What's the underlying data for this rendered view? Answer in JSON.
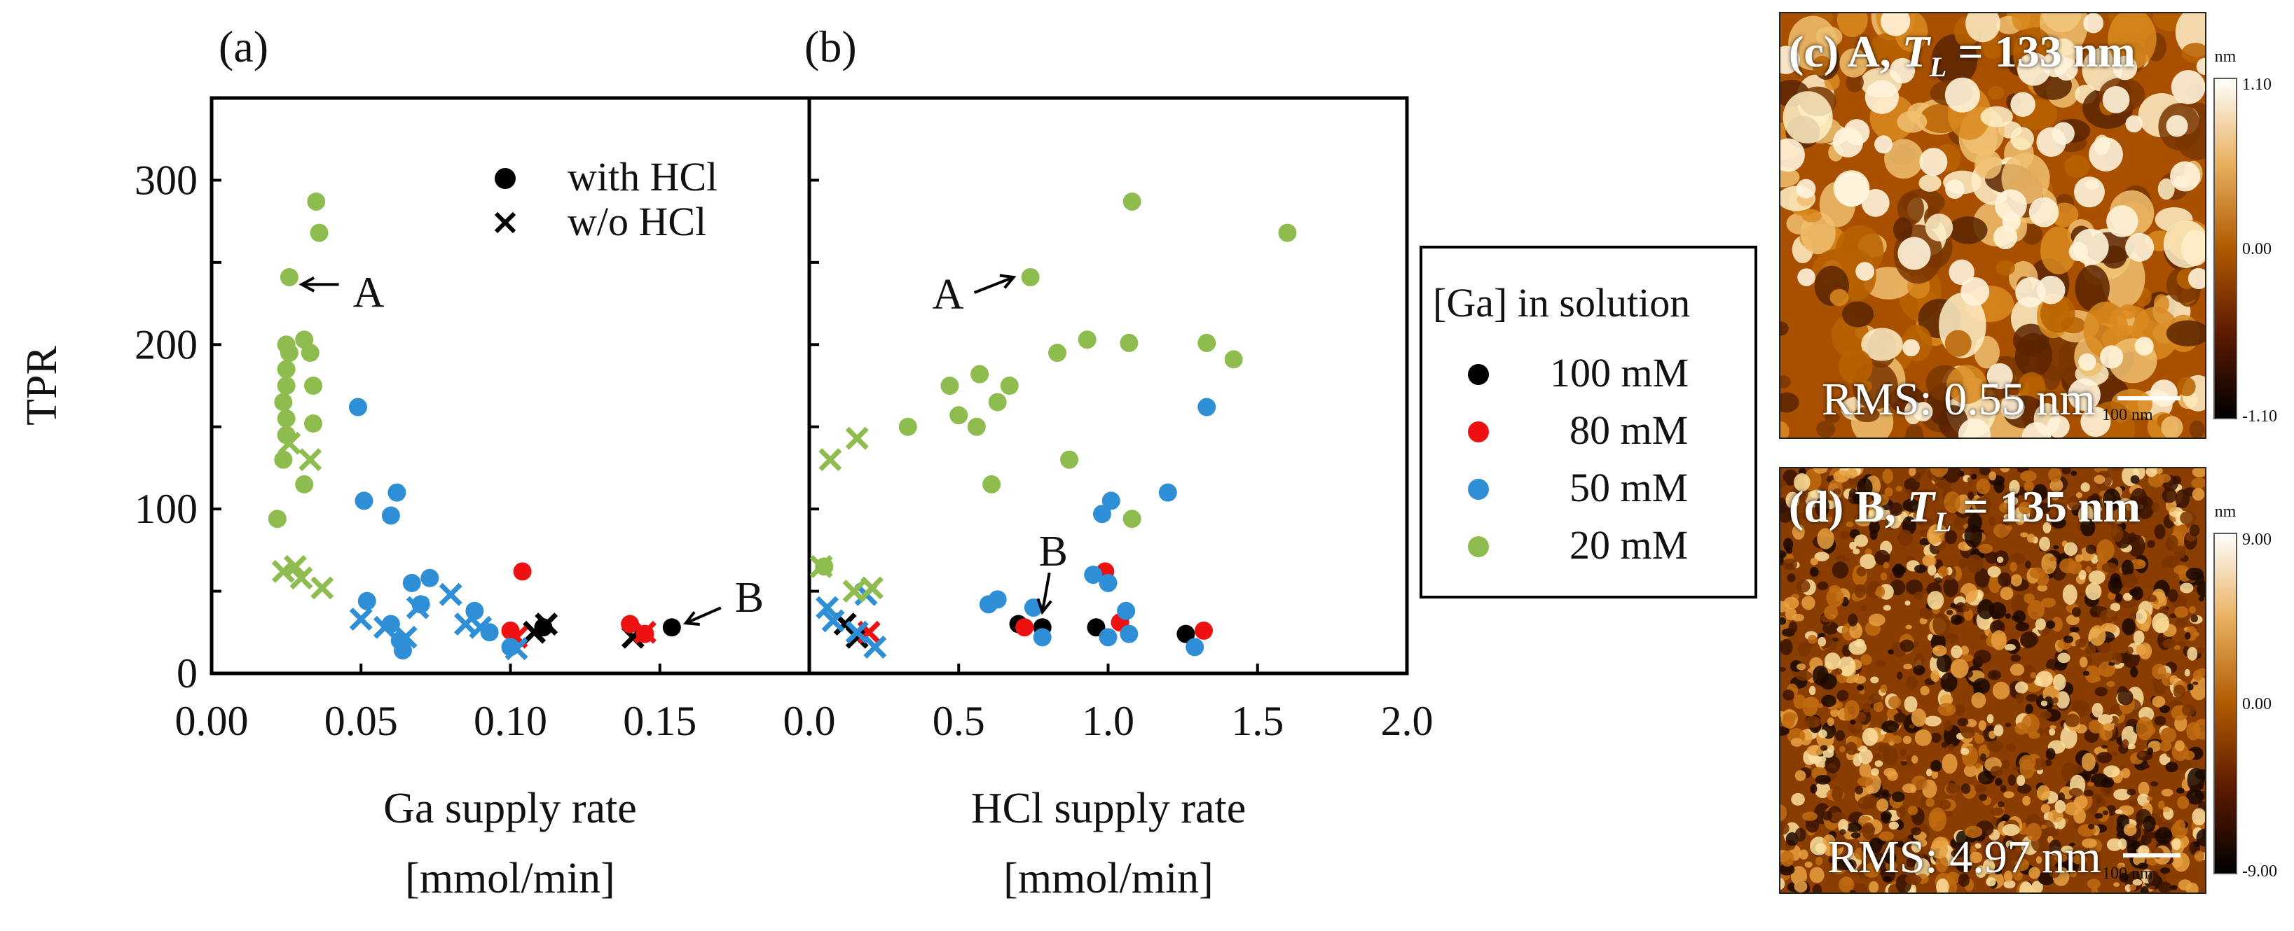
{
  "chart_data": [
    {
      "type": "scatter",
      "panel_label": "(a)",
      "xlabel_line1": "Ga supply rate",
      "xlabel_line2": "[mmol/min]",
      "ylabel": "TPR",
      "xlim": [
        0.0,
        0.2
      ],
      "ylim": [
        0,
        350
      ],
      "xticks": [
        0.0,
        0.05,
        0.1,
        0.15
      ],
      "xtick_labels": [
        "0.00",
        "0.05",
        "0.10",
        "0.15"
      ],
      "yticks": [
        0,
        100,
        200,
        300
      ],
      "ytick_labels": [
        "0",
        "100",
        "200",
        "300"
      ],
      "marker_legend": [
        {
          "marker": "circle",
          "label": "with HCl"
        },
        {
          "marker": "cross",
          "label": "w/o HCl"
        }
      ],
      "annotations": [
        {
          "text": "A",
          "point": [
            0.025,
            240
          ]
        },
        {
          "text": "B",
          "point": [
            0.154,
            28
          ]
        }
      ],
      "series": [
        {
          "name": "100 mM",
          "color": "#000000",
          "circles": [
            [
              0.154,
              28
            ],
            [
              0.111,
              28
            ]
          ],
          "crosses": [
            [
              0.141,
              22
            ],
            [
              0.108,
              25
            ],
            [
              0.112,
              30
            ]
          ]
        },
        {
          "name": "80 mM",
          "color": "#ee1111",
          "circles": [
            [
              0.104,
              62
            ],
            [
              0.1,
              26
            ],
            [
              0.14,
              30
            ],
            [
              0.145,
              24
            ]
          ],
          "crosses": [
            [
              0.102,
              22
            ],
            [
              0.145,
              25
            ]
          ]
        },
        {
          "name": "50 mM",
          "color": "#2e8fd6",
          "circles": [
            [
              0.049,
              162
            ],
            [
              0.051,
              105
            ],
            [
              0.062,
              110
            ],
            [
              0.06,
              96
            ],
            [
              0.052,
              44
            ],
            [
              0.073,
              58
            ],
            [
              0.067,
              55
            ],
            [
              0.07,
              42
            ],
            [
              0.06,
              30
            ],
            [
              0.063,
              20
            ],
            [
              0.064,
              14
            ],
            [
              0.088,
              38
            ],
            [
              0.093,
              25
            ],
            [
              0.1,
              16
            ]
          ],
          "crosses": [
            [
              0.05,
              33
            ],
            [
              0.058,
              28
            ],
            [
              0.065,
              22
            ],
            [
              0.069,
              40
            ],
            [
              0.08,
              48
            ],
            [
              0.085,
              30
            ],
            [
              0.09,
              28
            ],
            [
              0.102,
              15
            ]
          ]
        },
        {
          "name": "20 mM",
          "color": "#8fbc4f",
          "circles": [
            [
              0.035,
              287
            ],
            [
              0.036,
              268
            ],
            [
              0.026,
              241
            ],
            [
              0.025,
              200
            ],
            [
              0.031,
              203
            ],
            [
              0.026,
              195
            ],
            [
              0.033,
              195
            ],
            [
              0.025,
              185
            ],
            [
              0.025,
              175
            ],
            [
              0.034,
              175
            ],
            [
              0.024,
              165
            ],
            [
              0.025,
              155
            ],
            [
              0.034,
              152
            ],
            [
              0.025,
              145
            ],
            [
              0.024,
              130
            ],
            [
              0.031,
              115
            ],
            [
              0.022,
              94
            ]
          ],
          "crosses": [
            [
              0.026,
              140
            ],
            [
              0.033,
              130
            ],
            [
              0.024,
              62
            ],
            [
              0.028,
              65
            ],
            [
              0.03,
              58
            ],
            [
              0.037,
              52
            ]
          ]
        }
      ]
    },
    {
      "type": "scatter",
      "panel_label": "(b)",
      "xlabel_line1": "HCl supply rate",
      "xlabel_line2": "[mmol/min]",
      "xlim": [
        0.0,
        2.0
      ],
      "ylim": [
        0,
        350
      ],
      "xticks": [
        0.0,
        0.5,
        1.0,
        1.5,
        2.0
      ],
      "xtick_labels": [
        "0.0",
        "0.5",
        "1.0",
        "1.5",
        "2.0"
      ],
      "annotations": [
        {
          "text": "A",
          "point": [
            0.74,
            241
          ]
        },
        {
          "text": "B",
          "point": [
            0.78,
            28
          ]
        }
      ],
      "series": [
        {
          "name": "100 mM",
          "color": "#000000",
          "circles": [
            [
              0.7,
              30
            ],
            [
              0.78,
              28
            ],
            [
              0.96,
              28
            ],
            [
              1.26,
              24
            ]
          ],
          "crosses": [
            [
              0.12,
              30
            ],
            [
              0.16,
              22
            ]
          ]
        },
        {
          "name": "80 mM",
          "color": "#ee1111",
          "circles": [
            [
              0.72,
              28
            ],
            [
              0.99,
              62
            ],
            [
              1.04,
              31
            ],
            [
              1.32,
              26
            ]
          ],
          "crosses": [
            [
              0.2,
              25
            ]
          ]
        },
        {
          "name": "50 mM",
          "color": "#2e8fd6",
          "circles": [
            [
              0.6,
              42
            ],
            [
              0.63,
              45
            ],
            [
              0.75,
              40
            ],
            [
              0.78,
              22
            ],
            [
              0.95,
              60
            ],
            [
              0.98,
              97
            ],
            [
              1.01,
              105
            ],
            [
              1.0,
              55
            ],
            [
              1.06,
              38
            ],
            [
              1.07,
              24
            ],
            [
              1.0,
              22
            ],
            [
              1.2,
              110
            ],
            [
              1.29,
              16
            ],
            [
              1.33,
              162
            ]
          ],
          "crosses": [
            [
              0.06,
              40
            ],
            [
              0.08,
              32
            ],
            [
              0.16,
              25
            ],
            [
              0.19,
              48
            ],
            [
              0.22,
              16
            ]
          ]
        },
        {
          "name": "20 mM",
          "color": "#8fbc4f",
          "circles": [
            [
              0.05,
              65
            ],
            [
              0.33,
              150
            ],
            [
              0.47,
              175
            ],
            [
              0.5,
              157
            ],
            [
              0.56,
              150
            ],
            [
              0.57,
              182
            ],
            [
              0.61,
              115
            ],
            [
              0.63,
              165
            ],
            [
              0.67,
              175
            ],
            [
              0.74,
              241
            ],
            [
              0.83,
              195
            ],
            [
              0.87,
              130
            ],
            [
              0.93,
              203
            ],
            [
              1.08,
              287
            ],
            [
              1.08,
              94
            ],
            [
              1.07,
              201
            ],
            [
              1.33,
              201
            ],
            [
              1.42,
              191
            ],
            [
              1.6,
              268
            ]
          ],
          "crosses": [
            [
              0.07,
              130
            ],
            [
              0.16,
              143
            ],
            [
              0.04,
              65
            ],
            [
              0.15,
              50
            ],
            [
              0.21,
              52
            ]
          ]
        }
      ]
    }
  ],
  "legend": {
    "title": "[Ga] in solution",
    "items": [
      {
        "label": "100 mM",
        "color": "#000000"
      },
      {
        "label": "80 mM",
        "color": "#ee1111"
      },
      {
        "label": "50 mM",
        "color": "#2e8fd6"
      },
      {
        "label": "20 mM",
        "color": "#8fbc4f"
      }
    ]
  },
  "afm_images": [
    {
      "label_prefix": "(c) A, ",
      "label_var": "T",
      "label_sub": "L",
      "label_suffix": " = 133 nm",
      "rms": "RMS: 0.55 nm",
      "scalebar_text": "100 nm",
      "colorbar_unit": "nm",
      "colorbar_ticks": [
        "1.10",
        "0.00",
        "-1.10"
      ],
      "seed": 7,
      "blob_scale": "coarse"
    },
    {
      "label_prefix": "(d) B, ",
      "label_var": "T",
      "label_sub": "L",
      "label_suffix": " = 135 nm",
      "rms": "RMS: 4.97 nm",
      "scalebar_text": "100 nm",
      "colorbar_unit": "nm",
      "colorbar_ticks": [
        "9.00",
        "0.00",
        "-9.00"
      ],
      "seed": 23,
      "blob_scale": "fine"
    }
  ]
}
